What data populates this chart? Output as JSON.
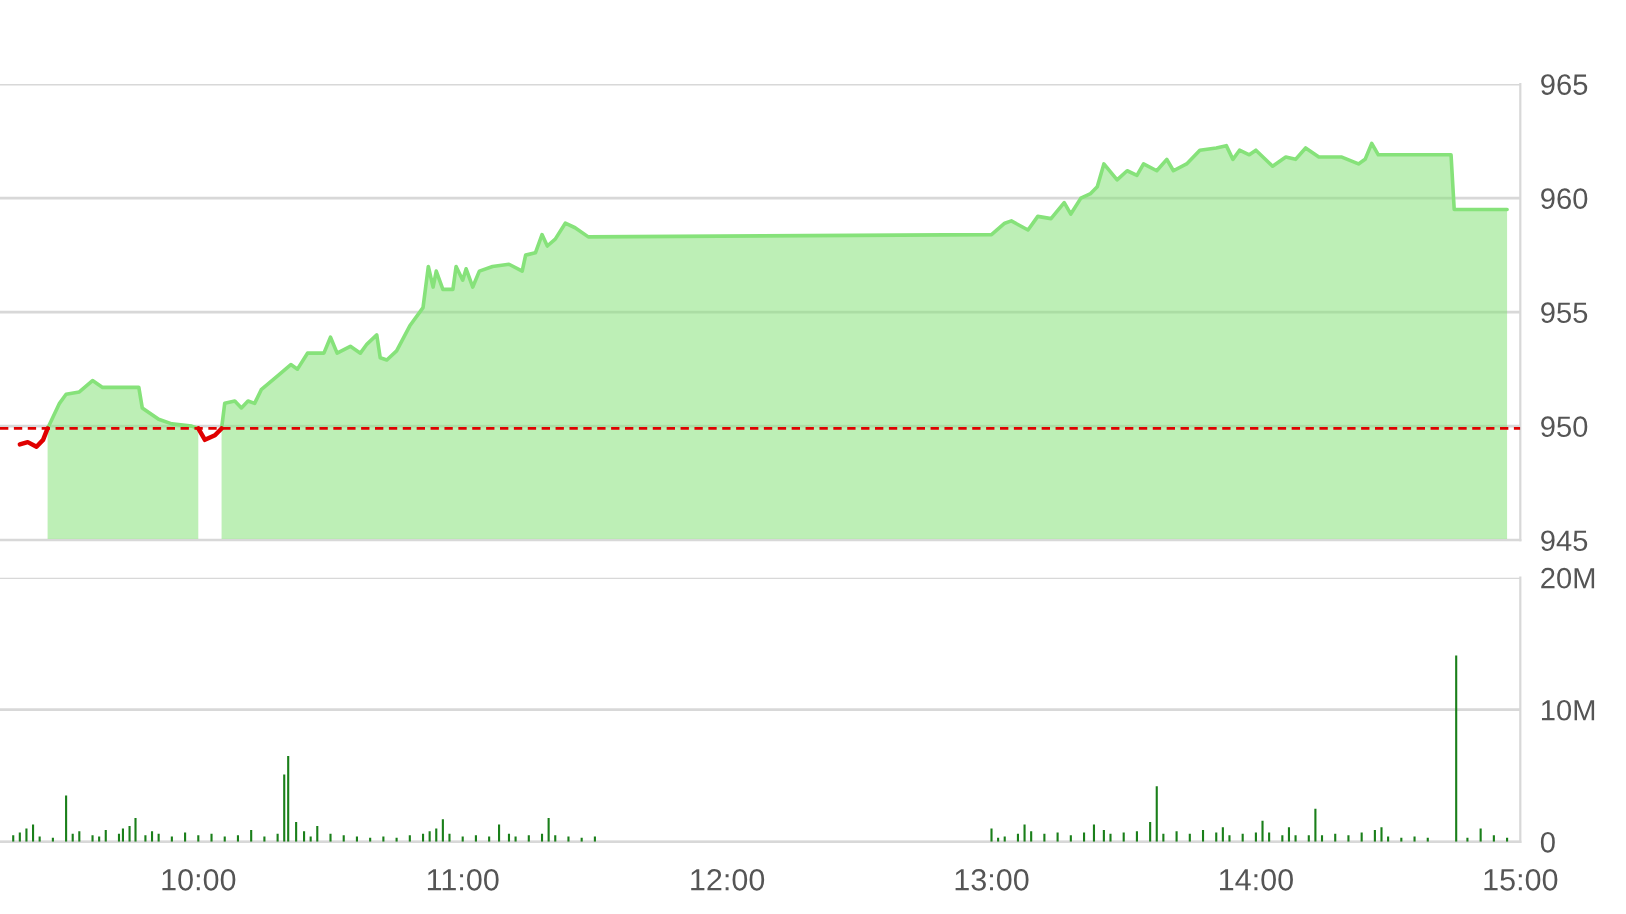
{
  "chart_data": [
    {
      "type": "area",
      "xlim": [
        9.25,
        15.0
      ],
      "ylim": [
        945,
        965
      ],
      "yticks": [
        945,
        950,
        955,
        960,
        965
      ],
      "tick_labels": "y",
      "grid": "y",
      "x": [
        9.325,
        9.355,
        9.388,
        9.413,
        9.43,
        9.475,
        9.5,
        9.55,
        9.6,
        9.638,
        9.775,
        9.788,
        9.85,
        9.9,
        9.975,
        10.0,
        10.025,
        10.063,
        10.088,
        10.1,
        10.138,
        10.163,
        10.188,
        10.213,
        10.238,
        10.3,
        10.35,
        10.375,
        10.413,
        10.475,
        10.5,
        10.525,
        10.575,
        10.613,
        10.638,
        10.675,
        10.688,
        10.713,
        10.75,
        10.8,
        10.85,
        10.87,
        10.888,
        10.9,
        10.925,
        10.963,
        10.975,
        11.0,
        11.013,
        11.038,
        11.063,
        11.113,
        11.175,
        11.225,
        11.238,
        11.275,
        11.3,
        11.32,
        11.35,
        11.388,
        11.425,
        11.475,
        13.0,
        13.05,
        13.075,
        13.138,
        13.175,
        13.225,
        13.275,
        13.3,
        13.338,
        13.375,
        13.4,
        13.425,
        13.475,
        13.513,
        13.55,
        13.575,
        13.625,
        13.663,
        13.688,
        13.738,
        13.788,
        13.85,
        13.888,
        13.913,
        13.938,
        13.975,
        14.0,
        14.063,
        14.113,
        14.15,
        14.188,
        14.238,
        14.325,
        14.388,
        14.413,
        14.438,
        14.463,
        14.738,
        14.75,
        14.95
      ],
      "series": [
        {
          "type": "area",
          "color": "#86e27a",
          "values": [
            null,
            null,
            null,
            null,
            949.9,
            951.0,
            951.4,
            951.5,
            952.0,
            951.7,
            951.7,
            950.8,
            950.3,
            950.1,
            950.0,
            949.9,
            null,
            null,
            949.9,
            951.0,
            951.1,
            950.8,
            951.1,
            951.0,
            951.6,
            952.2,
            952.7,
            952.5,
            953.2,
            953.2,
            953.9,
            953.2,
            953.5,
            953.2,
            953.6,
            954.0,
            953.0,
            952.9,
            953.3,
            954.4,
            955.2,
            957.0,
            956.1,
            956.8,
            956.0,
            956.0,
            957.0,
            956.4,
            956.9,
            956.1,
            956.8,
            957.0,
            957.1,
            956.8,
            957.5,
            957.6,
            958.4,
            957.9,
            958.2,
            958.9,
            958.7,
            958.3,
            958.4,
            958.9,
            959.0,
            958.6,
            959.2,
            959.1,
            959.8,
            959.3,
            960.0,
            960.2,
            960.5,
            961.5,
            960.8,
            961.2,
            961.0,
            961.5,
            961.2,
            961.7,
            961.2,
            961.5,
            962.1,
            962.2,
            962.3,
            961.7,
            962.1,
            961.9,
            962.1,
            961.4,
            961.8,
            961.7,
            962.2,
            961.8,
            961.8,
            961.5,
            961.7,
            962.4,
            961.9,
            961.9,
            959.5,
            959.5
          ]
        },
        {
          "type": "line",
          "color": "#e00000",
          "values": [
            949.2,
            949.3,
            949.1,
            949.4,
            949.9,
            null,
            null,
            null,
            null,
            null,
            null,
            null,
            null,
            null,
            null,
            949.9,
            949.4,
            949.6,
            949.9,
            null,
            null,
            null,
            null,
            null,
            null,
            null,
            null,
            null,
            null,
            null,
            null,
            null,
            null,
            null,
            null,
            null,
            null,
            null,
            null,
            null,
            null,
            null,
            null,
            null,
            null,
            null,
            null,
            null,
            null,
            null,
            null,
            null,
            null,
            null,
            null,
            null,
            null,
            null,
            null,
            null,
            null,
            null,
            null,
            null,
            null,
            null,
            null,
            null,
            null,
            null,
            null,
            null,
            null,
            null,
            null,
            null,
            null,
            null,
            null,
            null,
            null,
            null,
            null,
            null,
            null,
            null,
            null,
            null,
            null,
            null,
            null,
            null,
            null,
            null,
            null,
            null,
            null,
            null,
            null,
            null,
            null,
            null
          ]
        }
      ],
      "ref_lines": [
        {
          "axis": "y",
          "value": 949.9,
          "color": "#e00000",
          "line_style": "dashed"
        }
      ]
    },
    {
      "type": "bar",
      "xlim": [
        9.25,
        15.0
      ],
      "ylim": [
        0,
        20
      ],
      "xticks": [
        {
          "value": 10,
          "label": "10:00"
        },
        {
          "value": 11,
          "label": "11:00"
        },
        {
          "value": 12,
          "label": "12:00"
        },
        {
          "value": 13,
          "label": "13:00"
        },
        {
          "value": 14,
          "label": "14:00"
        },
        {
          "value": 15,
          "label": "15:00"
        }
      ],
      "yticks": [
        0,
        {
          "value": 10,
          "label": "10M"
        },
        {
          "value": 20,
          "label": "20M"
        }
      ],
      "grid": "y",
      "x": [
        9.3,
        9.325,
        9.35,
        9.375,
        9.4,
        9.45,
        9.5,
        9.525,
        9.55,
        9.6,
        9.625,
        9.65,
        9.7,
        9.715,
        9.74,
        9.7625,
        9.8,
        9.825,
        9.85,
        9.9,
        9.95,
        10.0,
        10.05,
        10.1,
        10.15,
        10.2,
        10.25,
        10.3,
        10.325,
        10.34,
        10.37,
        10.4,
        10.425,
        10.45,
        10.5,
        10.55,
        10.6,
        10.65,
        10.7,
        10.75,
        10.8,
        10.85,
        10.875,
        10.9,
        10.925,
        10.95,
        11.0,
        11.05,
        11.1,
        11.1375,
        11.175,
        11.2,
        11.25,
        11.3,
        11.325,
        11.35,
        11.4,
        11.45,
        11.5,
        13.0,
        13.025,
        13.05,
        13.1,
        13.125,
        13.15,
        13.2,
        13.25,
        13.3,
        13.35,
        13.3875,
        13.425,
        13.45,
        13.5,
        13.55,
        13.6,
        13.625,
        13.65,
        13.7,
        13.75,
        13.8,
        13.85,
        13.875,
        13.9,
        13.95,
        14.0,
        14.025,
        14.05,
        14.1,
        14.125,
        14.15,
        14.2,
        14.225,
        14.25,
        14.3,
        14.35,
        14.4,
        14.45,
        14.475,
        14.5,
        14.55,
        14.6,
        14.65,
        14.7575,
        14.8,
        14.85,
        14.9,
        14.95
      ],
      "series": [
        {
          "color": "#1a7f1a",
          "values": [
            0.5,
            0.7,
            1.0,
            1.3,
            0.4,
            0.3,
            3.5,
            0.6,
            0.8,
            0.5,
            0.4,
            0.9,
            0.6,
            1.0,
            1.2,
            1.8,
            0.5,
            0.8,
            0.6,
            0.4,
            0.7,
            0.5,
            0.6,
            0.4,
            0.5,
            0.9,
            0.4,
            0.6,
            5.1,
            6.5,
            1.5,
            0.8,
            0.4,
            1.2,
            0.6,
            0.5,
            0.4,
            0.3,
            0.4,
            0.3,
            0.5,
            0.6,
            0.8,
            1.0,
            1.7,
            0.6,
            0.4,
            0.5,
            0.4,
            1.3,
            0.6,
            0.4,
            0.5,
            0.6,
            1.8,
            0.5,
            0.4,
            0.3,
            0.4,
            1.0,
            0.3,
            0.4,
            0.6,
            1.3,
            0.8,
            0.6,
            0.7,
            0.5,
            0.7,
            1.3,
            0.9,
            0.6,
            0.7,
            0.8,
            1.5,
            4.2,
            0.6,
            0.8,
            0.6,
            0.9,
            0.7,
            1.1,
            0.5,
            0.6,
            0.7,
            1.6,
            0.7,
            0.5,
            1.1,
            0.5,
            0.5,
            2.5,
            0.5,
            0.6,
            0.5,
            0.7,
            0.9,
            1.1,
            0.4,
            0.3,
            0.4,
            0.3,
            14.1,
            0.3,
            1.0,
            0.5,
            0.3
          ]
        }
      ]
    }
  ]
}
